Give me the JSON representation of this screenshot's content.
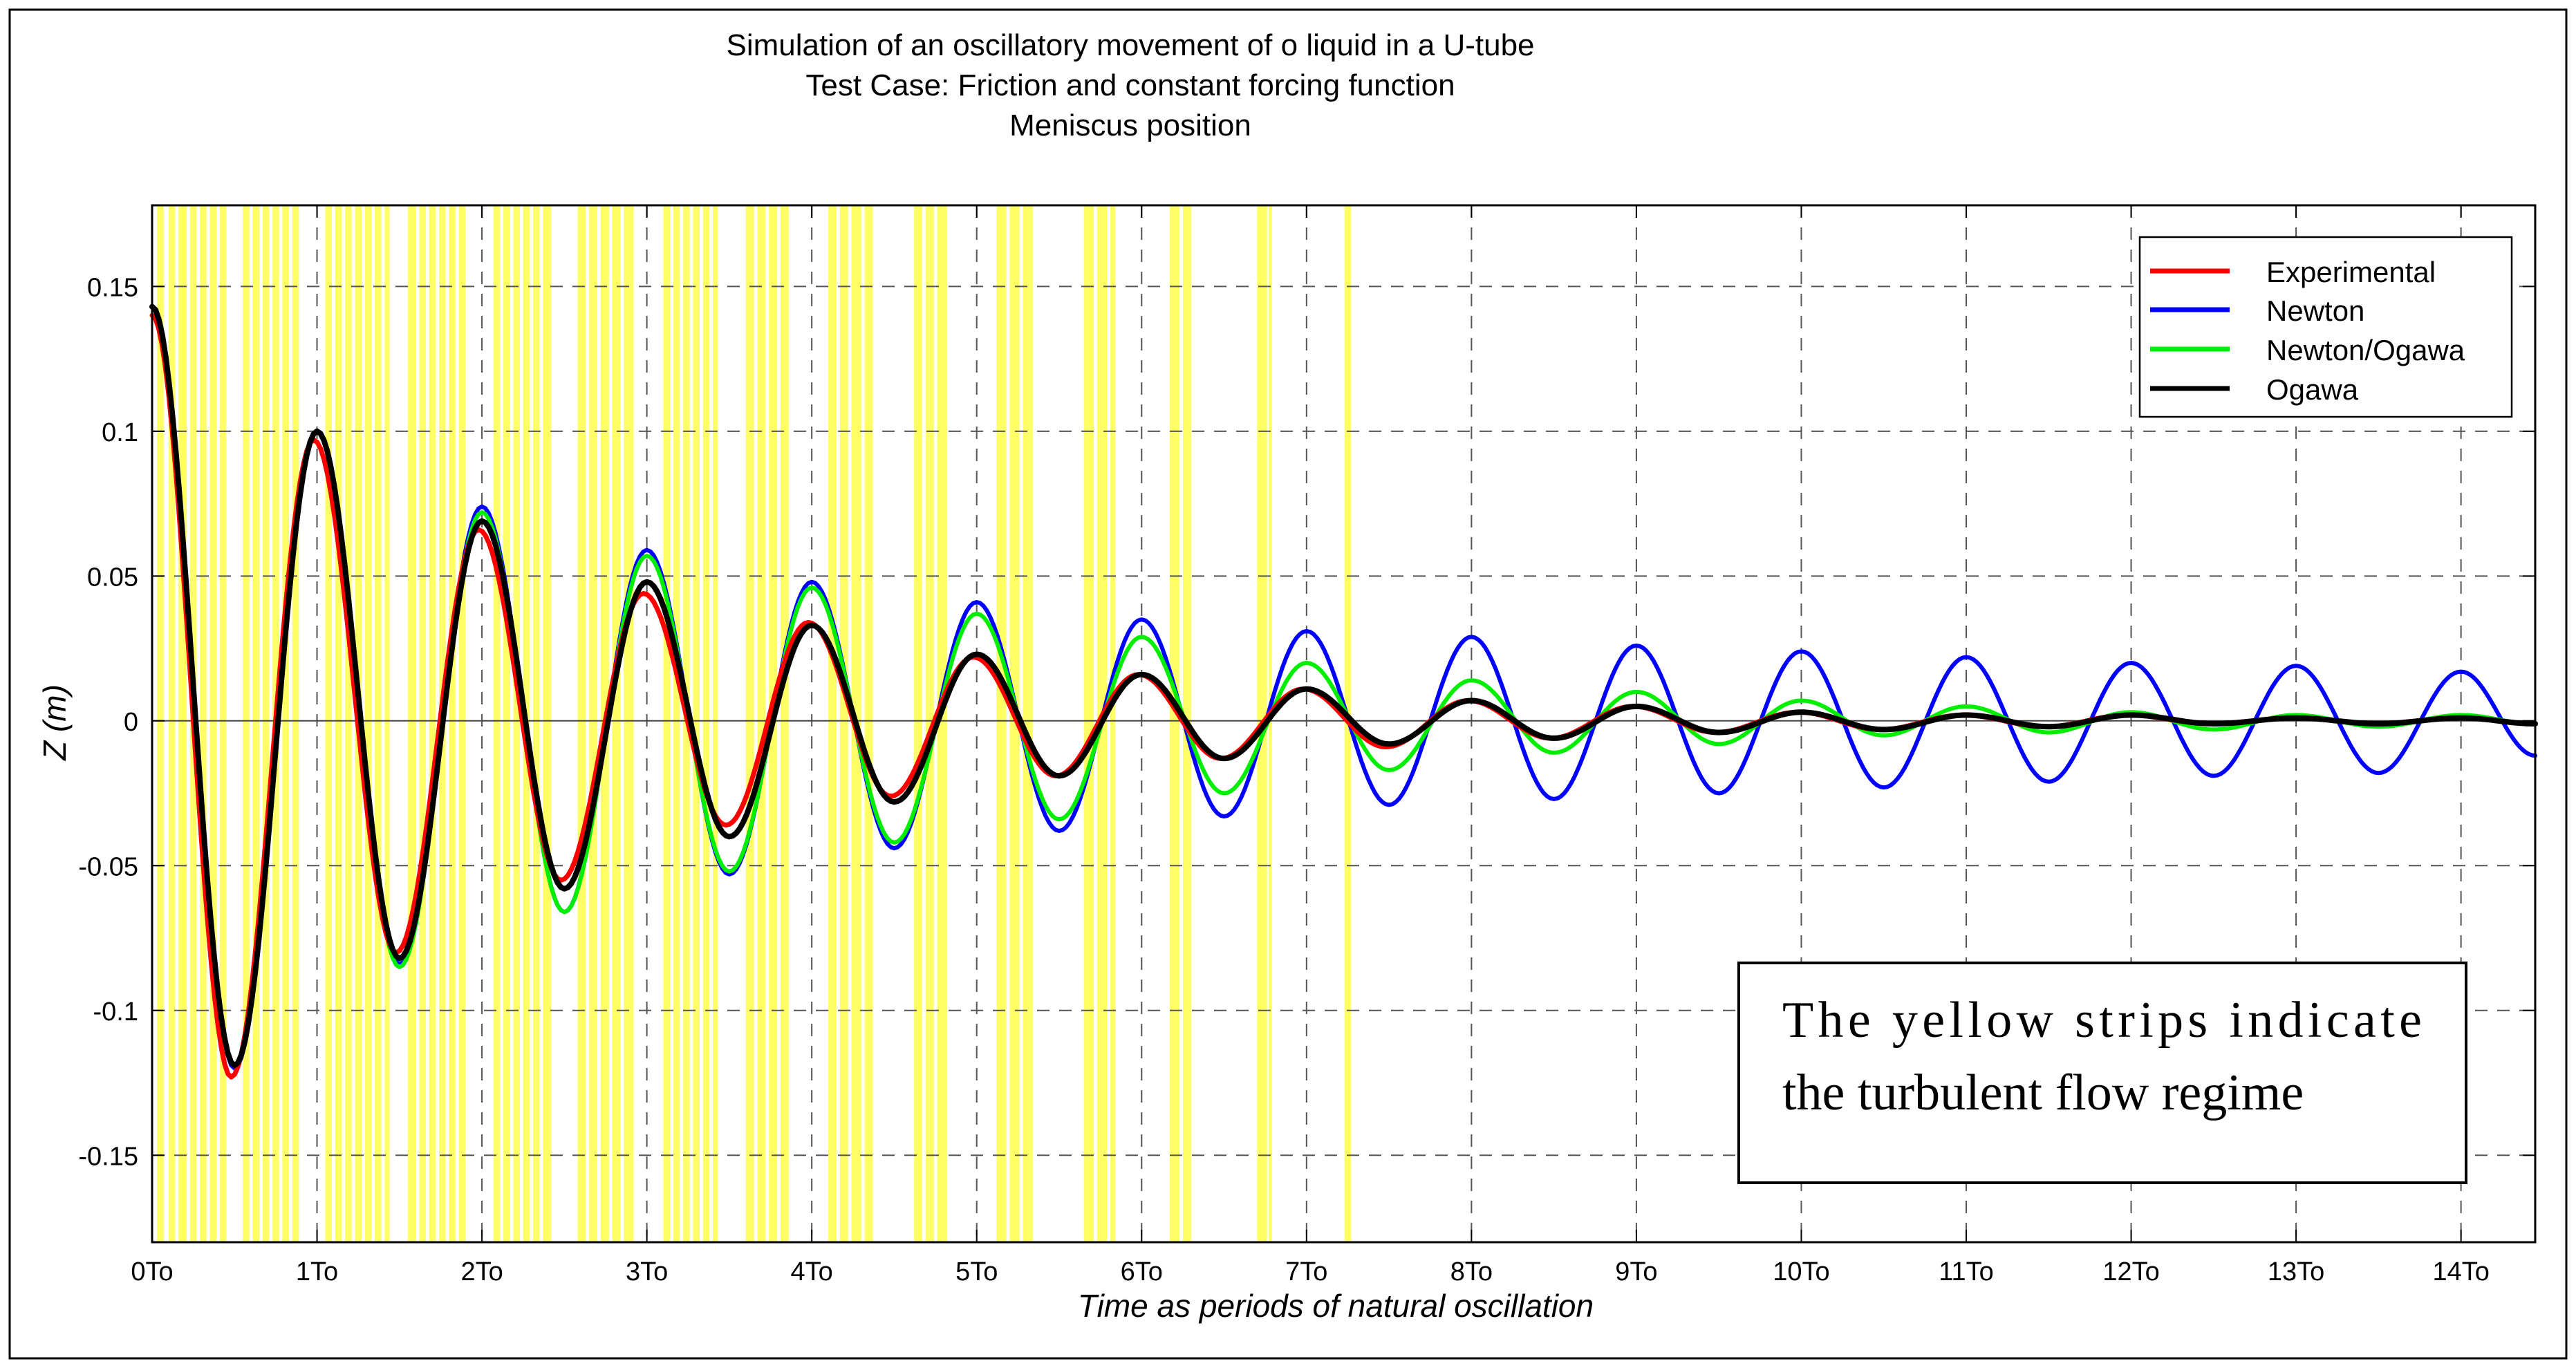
{
  "chart_data": {
    "type": "line",
    "title_lines": [
      "Simulation of an oscillatory movement of o liquid in a U-tube",
      "Test Case: Friction and constant forcing function",
      "Meniscus position"
    ],
    "xlabel": "Time as periods of natural oscillation",
    "ylabel": "Z (m)",
    "xlim": [
      0,
      14.45
    ],
    "ylim": [
      -0.18,
      0.178
    ],
    "x_ticks": [
      0,
      1,
      2,
      3,
      4,
      5,
      6,
      7,
      8,
      9,
      10,
      11,
      12,
      13,
      14
    ],
    "x_tick_labels": [
      "0To",
      "1To",
      "2To",
      "3To",
      "4To",
      "5To",
      "6To",
      "7To",
      "8To",
      "9To",
      "10To",
      "11To",
      "12To",
      "13To",
      "14To"
    ],
    "y_ticks": [
      0.15,
      0.1,
      0.05,
      0,
      -0.05,
      -0.1,
      -0.15
    ],
    "y_tick_labels": [
      "0.15",
      "0.1",
      "0.05",
      "0",
      "-0.05",
      "-0.1",
      "-0.15"
    ],
    "grid": true,
    "legend_position": "top-right",
    "series": [
      {
        "name": "Experimental",
        "color": "#ff0000",
        "peaks": [
          [
            0,
            0.14
          ],
          [
            0.48,
            -0.123
          ],
          [
            0.98,
            0.097
          ],
          [
            1.48,
            -0.08
          ],
          [
            1.98,
            0.066
          ],
          [
            2.48,
            -0.055
          ],
          [
            2.98,
            0.044
          ],
          [
            3.48,
            -0.036
          ],
          [
            3.98,
            0.034
          ],
          [
            4.48,
            -0.026
          ],
          [
            4.98,
            0.022
          ],
          [
            5.48,
            -0.019
          ],
          [
            5.98,
            0.016
          ],
          [
            6.48,
            -0.013
          ],
          [
            6.98,
            0.011
          ],
          [
            7.48,
            -0.009
          ],
          [
            7.98,
            0.007
          ],
          [
            8.48,
            -0.006
          ],
          [
            8.98,
            0.005
          ],
          [
            9.48,
            -0.004
          ],
          [
            9.98,
            0.003
          ],
          [
            10.48,
            -0.003
          ],
          [
            10.98,
            0.002
          ],
          [
            11.48,
            -0.002
          ],
          [
            11.98,
            0.002
          ],
          [
            12.48,
            -0.001
          ],
          [
            12.98,
            0.001
          ],
          [
            13.48,
            -0.001
          ],
          [
            13.98,
            0.001
          ],
          [
            14.45,
            -0.001
          ]
        ]
      },
      {
        "name": "Newton",
        "color": "#0000ff",
        "peaks": [
          [
            0,
            0.143
          ],
          [
            0.5,
            -0.12
          ],
          [
            1,
            0.1
          ],
          [
            1.5,
            -0.084
          ],
          [
            2,
            0.074
          ],
          [
            2.5,
            -0.066
          ],
          [
            3,
            0.059
          ],
          [
            3.5,
            -0.053
          ],
          [
            4,
            0.048
          ],
          [
            4.5,
            -0.044
          ],
          [
            5,
            0.041
          ],
          [
            5.5,
            -0.038
          ],
          [
            6,
            0.035
          ],
          [
            6.5,
            -0.033
          ],
          [
            7,
            0.031
          ],
          [
            7.5,
            -0.029
          ],
          [
            8,
            0.029
          ],
          [
            8.5,
            -0.027
          ],
          [
            9,
            0.026
          ],
          [
            9.5,
            -0.025
          ],
          [
            10,
            0.024
          ],
          [
            10.5,
            -0.023
          ],
          [
            11,
            0.022
          ],
          [
            11.5,
            -0.021
          ],
          [
            12,
            0.02
          ],
          [
            12.5,
            -0.019
          ],
          [
            13,
            0.019
          ],
          [
            13.5,
            -0.018
          ],
          [
            14,
            0.017
          ],
          [
            14.45,
            -0.012
          ]
        ]
      },
      {
        "name": "Newton/Ogawa",
        "color": "#00ee00",
        "peaks": [
          [
            0,
            0.143
          ],
          [
            0.5,
            -0.119
          ],
          [
            1,
            0.1
          ],
          [
            1.5,
            -0.085
          ],
          [
            2,
            0.072
          ],
          [
            2.5,
            -0.066
          ],
          [
            3,
            0.057
          ],
          [
            3.5,
            -0.052
          ],
          [
            4,
            0.046
          ],
          [
            4.5,
            -0.042
          ],
          [
            5,
            0.037
          ],
          [
            5.5,
            -0.034
          ],
          [
            6,
            0.029
          ],
          [
            6.5,
            -0.025
          ],
          [
            7,
            0.02
          ],
          [
            7.5,
            -0.017
          ],
          [
            8,
            0.014
          ],
          [
            8.5,
            -0.011
          ],
          [
            9,
            0.01
          ],
          [
            9.5,
            -0.008
          ],
          [
            10,
            0.007
          ],
          [
            10.5,
            -0.005
          ],
          [
            11,
            0.005
          ],
          [
            11.5,
            -0.004
          ],
          [
            12,
            0.003
          ],
          [
            12.5,
            -0.003
          ],
          [
            13,
            0.002
          ],
          [
            13.5,
            -0.002
          ],
          [
            14,
            0.002
          ],
          [
            14.45,
            -0.001
          ]
        ]
      },
      {
        "name": "Ogawa",
        "color": "#000000",
        "peaks": [
          [
            0,
            0.143
          ],
          [
            0.5,
            -0.119
          ],
          [
            1,
            0.1
          ],
          [
            1.5,
            -0.082
          ],
          [
            2,
            0.069
          ],
          [
            2.5,
            -0.058
          ],
          [
            3,
            0.048
          ],
          [
            3.5,
            -0.04
          ],
          [
            4,
            0.033
          ],
          [
            4.5,
            -0.028
          ],
          [
            5,
            0.023
          ],
          [
            5.5,
            -0.019
          ],
          [
            6,
            0.016
          ],
          [
            6.5,
            -0.013
          ],
          [
            7,
            0.011
          ],
          [
            7.5,
            -0.008
          ],
          [
            8,
            0.007
          ],
          [
            8.5,
            -0.006
          ],
          [
            9,
            0.005
          ],
          [
            9.5,
            -0.004
          ],
          [
            10,
            0.003
          ],
          [
            10.5,
            -0.003
          ],
          [
            11,
            0.002
          ],
          [
            11.5,
            -0.002
          ],
          [
            12,
            0.002
          ],
          [
            12.5,
            -0.001
          ],
          [
            13,
            0.001
          ],
          [
            13.5,
            -0.001
          ],
          [
            14,
            0.001
          ],
          [
            14.45,
            -0.001
          ]
        ]
      }
    ],
    "turbulent_strips": [
      [
        0.03,
        0.07
      ],
      [
        0.1,
        0.14
      ],
      [
        0.16,
        0.21
      ],
      [
        0.23,
        0.27
      ],
      [
        0.29,
        0.33
      ],
      [
        0.35,
        0.39
      ],
      [
        0.41,
        0.45
      ],
      [
        0.55,
        0.59
      ],
      [
        0.61,
        0.65
      ],
      [
        0.67,
        0.71
      ],
      [
        0.73,
        0.77
      ],
      [
        0.79,
        0.83
      ],
      [
        0.85,
        0.89
      ],
      [
        1.05,
        1.09
      ],
      [
        1.11,
        1.15
      ],
      [
        1.17,
        1.21
      ],
      [
        1.23,
        1.27
      ],
      [
        1.29,
        1.33
      ],
      [
        1.35,
        1.39
      ],
      [
        1.41,
        1.44
      ],
      [
        1.55,
        1.6
      ],
      [
        1.62,
        1.66
      ],
      [
        1.68,
        1.72
      ],
      [
        1.74,
        1.78
      ],
      [
        1.8,
        1.84
      ],
      [
        1.86,
        1.9
      ],
      [
        2.07,
        2.11
      ],
      [
        2.13,
        2.17
      ],
      [
        2.19,
        2.23
      ],
      [
        2.25,
        2.29
      ],
      [
        2.31,
        2.35
      ],
      [
        2.37,
        2.42
      ],
      [
        2.58,
        2.63
      ],
      [
        2.65,
        2.7
      ],
      [
        2.72,
        2.77
      ],
      [
        2.79,
        2.84
      ],
      [
        2.86,
        2.92
      ],
      [
        3.1,
        3.14
      ],
      [
        3.16,
        3.2
      ],
      [
        3.22,
        3.26
      ],
      [
        3.28,
        3.32
      ],
      [
        3.34,
        3.38
      ],
      [
        3.4,
        3.43
      ],
      [
        3.6,
        3.65
      ],
      [
        3.67,
        3.72
      ],
      [
        3.74,
        3.79
      ],
      [
        3.81,
        3.86
      ],
      [
        4.1,
        4.15
      ],
      [
        4.17,
        4.22
      ],
      [
        4.24,
        4.3
      ],
      [
        4.32,
        4.37
      ],
      [
        4.62,
        4.67
      ],
      [
        4.69,
        4.74
      ],
      [
        4.76,
        4.82
      ],
      [
        5.12,
        5.18
      ],
      [
        5.2,
        5.26
      ],
      [
        5.28,
        5.34
      ],
      [
        5.65,
        5.71
      ],
      [
        5.73,
        5.79
      ],
      [
        5.81,
        5.84
      ],
      [
        6.17,
        6.23
      ],
      [
        6.25,
        6.3
      ],
      [
        6.7,
        6.76
      ],
      [
        6.77,
        6.79
      ],
      [
        7.23,
        7.27
      ]
    ],
    "annotation_lines": [
      "The yellow strips indicate",
      "the turbulent flow regime"
    ],
    "colors": {
      "strip": "#ffff66",
      "grid": "#555555",
      "axis_zero": "#444444"
    }
  }
}
